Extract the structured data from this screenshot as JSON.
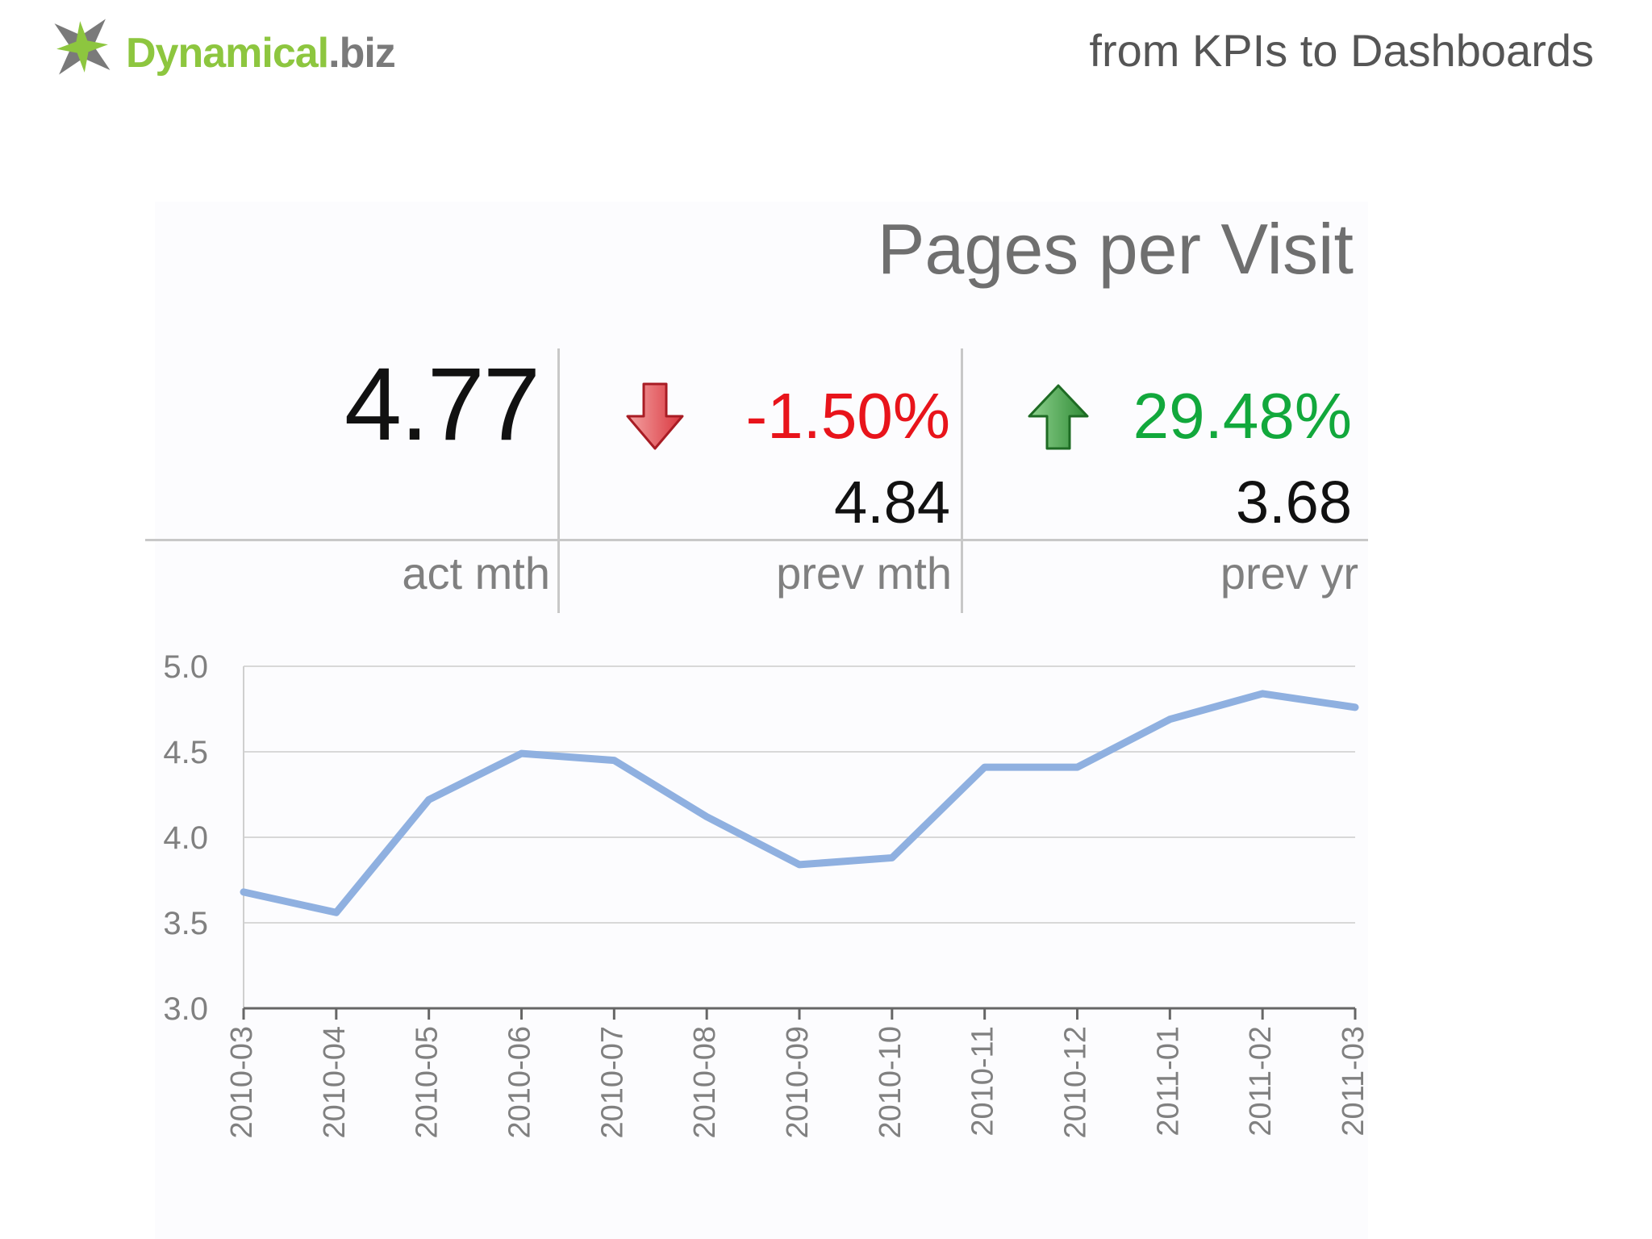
{
  "header": {
    "logo_brand": "Dynamical",
    "logo_tld": ".biz",
    "tagline": "from KPIs to Dashboards"
  },
  "kpi": {
    "title": "Pages per Visit",
    "actual": "4.77",
    "actual_label": "act mth",
    "prev_month_change": "-1.50%",
    "prev_month_value": "4.84",
    "prev_month_label": "prev mth",
    "prev_year_change": "29.48%",
    "prev_year_value": "3.68",
    "prev_year_label": "prev yr"
  },
  "colors": {
    "down": "#e8141b",
    "up": "#12a83c",
    "line": "#8fb0e0",
    "logo_green": "#8dc63f"
  },
  "icons": {
    "logo": "star-x-logo-icon",
    "down": "arrow-down-icon",
    "up": "arrow-up-icon"
  },
  "chart_data": {
    "type": "line",
    "title": "",
    "xlabel": "",
    "ylabel": "",
    "categories": [
      "2010-03",
      "2010-04",
      "2010-05",
      "2010-06",
      "2010-07",
      "2010-08",
      "2010-09",
      "2010-10",
      "2010-11",
      "2010-12",
      "2011-01",
      "2011-02",
      "2011-03"
    ],
    "series": [
      {
        "values": [
          3.68,
          3.56,
          4.22,
          4.49,
          4.45,
          4.12,
          3.84,
          3.88,
          4.41,
          4.41,
          4.69,
          4.84,
          4.76
        ]
      }
    ],
    "ylim": [
      3.0,
      5.0
    ],
    "yticks": [
      "3.0",
      "3.5",
      "4.0",
      "4.5",
      "5.0"
    ],
    "grid": true,
    "legend": "none"
  }
}
